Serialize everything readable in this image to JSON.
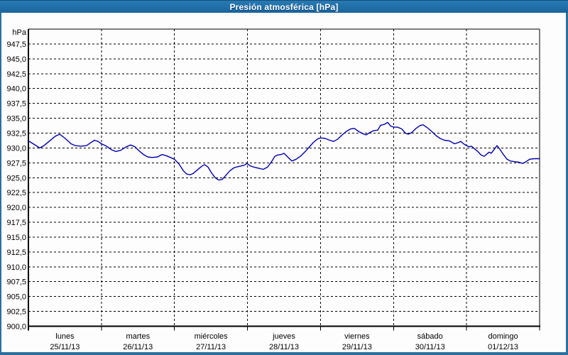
{
  "window": {
    "title": "Presión atmosférica [hPa]",
    "colors": {
      "titlebar": "#2172aa",
      "border": "#2b6f9f",
      "background": "#fdfdfd",
      "grid": "#000000",
      "axis_text": "#000000",
      "title_text": "#ffffff",
      "line": "#0000a8"
    }
  },
  "chart_data": {
    "type": "line",
    "title": "Presión atmosférica [hPa]",
    "ylabel": "hPa",
    "grid": "dashed",
    "legend": "none",
    "y_axis": {
      "min": 900.0,
      "max": 950.0,
      "tick_step": 2.5,
      "decimal_separator": ",",
      "tick_labels": [
        "947,5",
        "945,0",
        "942,5",
        "940,0",
        "937,5",
        "935,0",
        "932,5",
        "930,0",
        "927,5",
        "925,0",
        "922,5",
        "920,0",
        "917,5",
        "915,0",
        "912,5",
        "910,0",
        "907,5",
        "905,0",
        "902,5",
        "900,0"
      ]
    },
    "x_axis": {
      "hours_total": 168,
      "day_span_hours": 24,
      "labels": [
        {
          "day": "lunes",
          "date": "25/11/13"
        },
        {
          "day": "martes",
          "date": "26/11/13"
        },
        {
          "day": "miércoles",
          "date": "27/11/13"
        },
        {
          "day": "jueves",
          "date": "28/11/13"
        },
        {
          "day": "viernes",
          "date": "29/11/13"
        },
        {
          "day": "sábado",
          "date": "30/11/13"
        },
        {
          "day": "domingo",
          "date": "01/12/13"
        }
      ]
    },
    "series": [
      {
        "name": "Presión atmosférica",
        "unit": "hPa",
        "color": "#0000a8",
        "points": [
          [
            0,
            931.2
          ],
          [
            1.9,
            930.6
          ],
          [
            3.7,
            930.0
          ],
          [
            5.1,
            930.4
          ],
          [
            7,
            931.2
          ],
          [
            8.9,
            932.0
          ],
          [
            10.3,
            932.3
          ],
          [
            12.1,
            931.6
          ],
          [
            14,
            930.7
          ],
          [
            15.4,
            930.4
          ],
          [
            17.3,
            930.3
          ],
          [
            19.1,
            930.4
          ],
          [
            20.5,
            930.9
          ],
          [
            21.7,
            931.3
          ],
          [
            22.9,
            931.1
          ],
          [
            24,
            930.7
          ],
          [
            25.7,
            930.3
          ],
          [
            27.3,
            929.7
          ],
          [
            28.7,
            929.4
          ],
          [
            30.3,
            929.6
          ],
          [
            32.2,
            930.2
          ],
          [
            33.6,
            930.5
          ],
          [
            35,
            930.2
          ],
          [
            36.4,
            929.5
          ],
          [
            37.8,
            928.9
          ],
          [
            39.2,
            928.5
          ],
          [
            40.6,
            928.4
          ],
          [
            42.5,
            928.5
          ],
          [
            43.9,
            928.9
          ],
          [
            45.3,
            928.7
          ],
          [
            46.7,
            928.4
          ],
          [
            48,
            928.1
          ],
          [
            49.5,
            927.3
          ],
          [
            50.9,
            926.2
          ],
          [
            52,
            925.6
          ],
          [
            53.2,
            925.5
          ],
          [
            54.1,
            925.7
          ],
          [
            55.5,
            926.3
          ],
          [
            56.9,
            926.9
          ],
          [
            57.9,
            927.2
          ],
          [
            59,
            926.8
          ],
          [
            60.2,
            925.8
          ],
          [
            61.4,
            925.0
          ],
          [
            62.5,
            924.6
          ],
          [
            63.7,
            924.7
          ],
          [
            64.9,
            925.4
          ],
          [
            66.3,
            926.2
          ],
          [
            67.7,
            926.7
          ],
          [
            69.3,
            926.9
          ],
          [
            70.9,
            927.1
          ],
          [
            71.9,
            927.4
          ],
          [
            72.8,
            927.0
          ],
          [
            74,
            926.8
          ],
          [
            75.6,
            926.6
          ],
          [
            77.2,
            926.4
          ],
          [
            78.6,
            926.8
          ],
          [
            79.8,
            927.6
          ],
          [
            81,
            928.6
          ],
          [
            81.9,
            928.8
          ],
          [
            83.1,
            928.9
          ],
          [
            84,
            929.1
          ],
          [
            85.2,
            928.5
          ],
          [
            86.6,
            927.8
          ],
          [
            88,
            928.1
          ],
          [
            89.4,
            928.6
          ],
          [
            90.8,
            929.3
          ],
          [
            92.2,
            930.1
          ],
          [
            93.6,
            930.9
          ],
          [
            95,
            931.5
          ],
          [
            96,
            931.7
          ],
          [
            97.5,
            931.6
          ],
          [
            99,
            931.3
          ],
          [
            100.3,
            931.1
          ],
          [
            101.7,
            931.5
          ],
          [
            103.1,
            932.2
          ],
          [
            104.5,
            932.8
          ],
          [
            105.9,
            933.2
          ],
          [
            107.1,
            933.3
          ],
          [
            108.5,
            932.8
          ],
          [
            109.9,
            932.4
          ],
          [
            111,
            932.2
          ],
          [
            112.2,
            932.6
          ],
          [
            113.4,
            932.9
          ],
          [
            114.8,
            933.0
          ],
          [
            115.7,
            933.8
          ],
          [
            117.1,
            934.0
          ],
          [
            118.1,
            934.3
          ],
          [
            119,
            933.7
          ],
          [
            120,
            933.5
          ],
          [
            121.3,
            933.5
          ],
          [
            122.7,
            933.2
          ],
          [
            123.9,
            932.5
          ],
          [
            124.8,
            932.3
          ],
          [
            126,
            932.6
          ],
          [
            127.4,
            933.3
          ],
          [
            128.8,
            933.8
          ],
          [
            129.7,
            933.9
          ],
          [
            131.1,
            933.4
          ],
          [
            132.5,
            932.8
          ],
          [
            133.9,
            932.1
          ],
          [
            135.3,
            931.6
          ],
          [
            136.7,
            931.3
          ],
          [
            138.4,
            931.2
          ],
          [
            140,
            930.7
          ],
          [
            141.2,
            930.9
          ],
          [
            142.1,
            931.1
          ],
          [
            143,
            930.7
          ],
          [
            144,
            930.4
          ],
          [
            144.9,
            930.2
          ],
          [
            145.6,
            930.3
          ],
          [
            146.5,
            929.9
          ],
          [
            147.7,
            929.4
          ],
          [
            148.8,
            928.8
          ],
          [
            149.8,
            928.6
          ],
          [
            150.7,
            929.0
          ],
          [
            151.4,
            929.3
          ],
          [
            152.1,
            929.1
          ],
          [
            153,
            929.7
          ],
          [
            154,
            930.4
          ],
          [
            154.9,
            929.8
          ],
          [
            156.1,
            928.9
          ],
          [
            157.3,
            928.1
          ],
          [
            158.4,
            927.8
          ],
          [
            159.8,
            927.7
          ],
          [
            161.2,
            927.6
          ],
          [
            162.4,
            927.4
          ],
          [
            163.6,
            927.7
          ],
          [
            164.7,
            928.1
          ],
          [
            166.1,
            928.2
          ],
          [
            168,
            928.2
          ]
        ]
      }
    ]
  }
}
